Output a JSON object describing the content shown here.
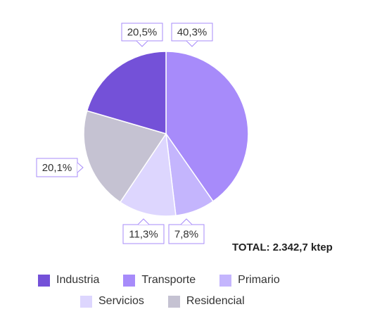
{
  "chart_data": {
    "type": "pie",
    "slices": [
      {
        "name": "Transporte",
        "value": 40.3,
        "label": "40,3%",
        "color": "#a78bfa"
      },
      {
        "name": "Primario",
        "value": 7.8,
        "label": "7,8%",
        "color": "#c4b5fd"
      },
      {
        "name": "Servicios",
        "value": 11.3,
        "label": "11,3%",
        "color": "#ddd6fe"
      },
      {
        "name": "Residencial",
        "value": 20.1,
        "label": "20,1%",
        "color": "#c5c2d2"
      },
      {
        "name": "Industria",
        "value": 20.5,
        "label": "20,5%",
        "color": "#7451d8"
      }
    ],
    "total": "TOTAL: 2.342,7 ktep",
    "legend": {
      "placement": "bottom",
      "items": [
        "Industria",
        "Transporte",
        "Primario",
        "Servicios",
        "Residencial"
      ]
    },
    "border_color": "#a78bfa"
  }
}
